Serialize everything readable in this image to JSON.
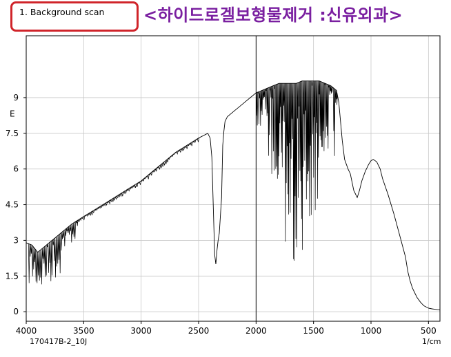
{
  "header": {
    "scan_label": "1.   Background scan",
    "title": "<하이드로겔보형물제거 :신유외과>"
  },
  "colors": {
    "title": "#7a1fa0",
    "box_border": "#d0242a",
    "line": "#000000"
  },
  "chart_data": {
    "type": "line",
    "title": "",
    "xlabel": "1/cm",
    "ylabel": "E",
    "sample_id": "170417B-2_10J",
    "xlim": [
      4000,
      400
    ],
    "ylim": [
      -0.4,
      11.6
    ],
    "x_ticks": [
      4000,
      3500,
      3000,
      2500,
      2000,
      1500,
      1000,
      500
    ],
    "y_ticks": [
      0,
      1.5,
      3,
      4.5,
      6,
      7.5,
      9
    ],
    "y_tick_labels": [
      "0",
      "1.5",
      "3",
      "4.5",
      "6",
      "7.5",
      "9"
    ],
    "grid": true,
    "marker_line_x": 2000,
    "series": [
      {
        "values_note": "",
        "x": [
          4000,
          3950,
          3900,
          3850,
          3800,
          3750,
          3700,
          3650,
          3600,
          3500,
          3400,
          3300,
          3200,
          3100,
          3000,
          2900,
          2800,
          2700,
          2600,
          2500,
          2420,
          2400,
          2385,
          2370,
          2360,
          2350,
          2340,
          2330,
          2320,
          2300,
          2290,
          2280,
          2270,
          2250,
          2200,
          2150,
          2100,
          2050,
          2000,
          1950,
          1900,
          1850,
          1800,
          1750,
          1700,
          1650,
          1600,
          1550,
          1500,
          1450,
          1400,
          1350,
          1300,
          1280,
          1250,
          1230,
          1200,
          1180,
          1150,
          1120,
          1100,
          1080,
          1050,
          1020,
          1000,
          980,
          950,
          920,
          900,
          850,
          800,
          750,
          700,
          680,
          660,
          640,
          620,
          600,
          570,
          540,
          500,
          470,
          440,
          420,
          400
        ],
        "y": [
          2.9,
          2.8,
          2.5,
          2.7,
          2.9,
          3.1,
          3.3,
          3.5,
          3.7,
          4.0,
          4.3,
          4.6,
          4.9,
          5.2,
          5.5,
          5.9,
          6.3,
          6.7,
          7.0,
          7.3,
          7.5,
          7.3,
          6.5,
          4.0,
          2.4,
          2.0,
          2.6,
          3.0,
          3.3,
          4.8,
          7.0,
          7.6,
          8.0,
          8.2,
          8.4,
          8.6,
          8.8,
          9.0,
          9.2,
          9.3,
          9.4,
          9.5,
          9.6,
          9.6,
          9.6,
          9.6,
          9.7,
          9.7,
          9.7,
          9.7,
          9.6,
          9.5,
          9.3,
          8.8,
          7.2,
          6.4,
          6.0,
          5.8,
          5.1,
          4.8,
          5.1,
          5.5,
          5.9,
          6.2,
          6.35,
          6.4,
          6.3,
          6.0,
          5.6,
          4.9,
          4.1,
          3.2,
          2.3,
          1.7,
          1.3,
          1.0,
          0.8,
          0.6,
          0.4,
          0.25,
          0.15,
          0.12,
          0.1,
          0.08,
          0.07
        ]
      }
    ]
  }
}
